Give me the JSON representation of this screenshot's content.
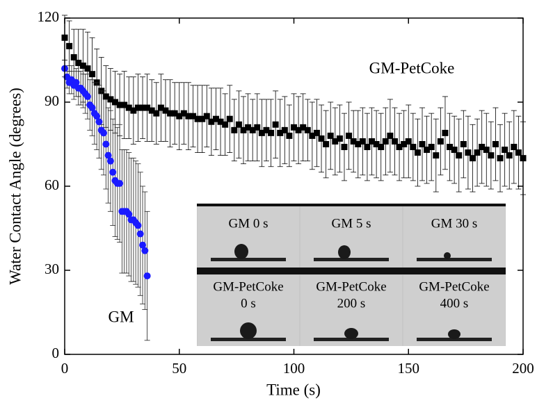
{
  "chart_data": {
    "type": "scatter",
    "xlabel": "Time (s)",
    "ylabel": "Water Contact Angle (degrees)",
    "xlim": [
      0,
      200
    ],
    "ylim": [
      0,
      120
    ],
    "xticks": [
      0,
      50,
      100,
      150,
      200
    ],
    "yticks": [
      0,
      30,
      60,
      90,
      120
    ],
    "series": [
      {
        "name": "GM-PetCoke",
        "color": "#000000",
        "marker": "square",
        "x": [
          0,
          2,
          4,
          6,
          8,
          10,
          12,
          14,
          16,
          18,
          20,
          22,
          24,
          26,
          28,
          30,
          32,
          34,
          36,
          38,
          40,
          42,
          44,
          46,
          48,
          50,
          52,
          54,
          56,
          58,
          60,
          62,
          64,
          66,
          68,
          70,
          72,
          74,
          76,
          78,
          80,
          82,
          84,
          86,
          88,
          90,
          92,
          94,
          96,
          98,
          100,
          102,
          104,
          106,
          108,
          110,
          112,
          114,
          116,
          118,
          120,
          122,
          124,
          126,
          128,
          130,
          132,
          134,
          136,
          138,
          140,
          142,
          144,
          146,
          148,
          150,
          152,
          154,
          156,
          158,
          160,
          162,
          164,
          166,
          168,
          170,
          172,
          174,
          176,
          178,
          180,
          182,
          184,
          186,
          188,
          190,
          192,
          194,
          196,
          198,
          200
        ],
        "values": [
          113,
          110,
          106,
          104,
          103,
          102,
          100,
          97,
          94,
          92,
          91,
          90,
          89,
          89,
          88,
          87,
          88,
          88,
          88,
          87,
          86,
          88,
          87,
          86,
          86,
          85,
          86,
          85,
          85,
          84,
          84,
          85,
          83,
          84,
          83,
          82,
          84,
          80,
          82,
          80,
          81,
          80,
          81,
          79,
          80,
          79,
          82,
          79,
          80,
          78,
          81,
          80,
          81,
          80,
          78,
          79,
          77,
          75,
          78,
          76,
          77,
          74,
          78,
          76,
          75,
          76,
          74,
          76,
          75,
          74,
          76,
          78,
          76,
          74,
          75,
          76,
          74,
          72,
          75,
          73,
          74,
          71,
          76,
          79,
          74,
          73,
          71,
          75,
          72,
          70,
          72,
          74,
          73,
          71,
          75,
          70,
          73,
          71,
          74,
          72,
          70
        ],
        "errors": [
          8,
          9,
          10,
          12,
          13,
          13,
          13,
          12,
          12,
          11,
          11,
          11,
          11,
          12,
          11,
          12,
          12,
          11,
          12,
          11,
          11,
          12,
          11,
          12,
          11,
          12,
          11,
          12,
          11,
          12,
          12,
          11,
          12,
          11,
          12,
          11,
          12,
          11,
          12,
          12,
          12,
          11,
          12,
          12,
          11,
          12,
          12,
          12,
          12,
          11,
          12,
          12,
          12,
          11,
          12,
          12,
          12,
          12,
          12,
          12,
          12,
          12,
          12,
          11,
          12,
          12,
          12,
          12,
          12,
          12,
          12,
          13,
          12,
          12,
          12,
          13,
          12,
          12,
          13,
          12,
          12,
          13,
          12,
          13,
          12,
          12,
          13,
          12,
          13,
          12,
          12,
          13,
          13,
          12,
          13,
          12,
          13,
          12,
          13,
          13,
          13
        ]
      },
      {
        "name": "GM",
        "color": "#1a1aff",
        "marker": "circle",
        "x": [
          0,
          1,
          2,
          3,
          4,
          5,
          6,
          7,
          8,
          9,
          10,
          11,
          12,
          13,
          14,
          15,
          16,
          17,
          18,
          19,
          20,
          21,
          22,
          23,
          24,
          25,
          26,
          27,
          28,
          29,
          30,
          31,
          32,
          33,
          34,
          35,
          36
        ],
        "values": [
          102,
          99,
          97,
          98,
          96,
          97,
          95,
          95,
          94,
          93,
          92,
          89,
          88,
          86,
          85,
          83,
          80,
          79,
          75,
          71,
          69,
          65,
          62,
          61,
          61,
          51,
          51,
          51,
          50,
          48,
          48,
          47,
          46,
          43,
          39,
          37,
          28
        ],
        "errors": [
          3,
          4,
          4,
          5,
          5,
          5,
          6,
          6,
          6,
          7,
          8,
          9,
          10,
          11,
          12,
          13,
          14,
          15,
          16,
          17,
          18,
          19,
          20,
          20,
          21,
          22,
          22,
          22,
          22,
          22,
          22,
          22,
          22,
          22,
          21,
          21,
          23
        ]
      }
    ],
    "annotations": [
      "GM-PetCoke",
      "GM"
    ],
    "inset": {
      "panels": [
        [
          "GM  0 s"
        ],
        [
          "GM  5 s"
        ],
        [
          "GM  30 s"
        ],
        [
          "GM-PetCoke",
          "0 s"
        ],
        [
          "GM-PetCoke",
          "200 s"
        ],
        [
          "GM-PetCoke",
          "400 s"
        ]
      ]
    }
  }
}
